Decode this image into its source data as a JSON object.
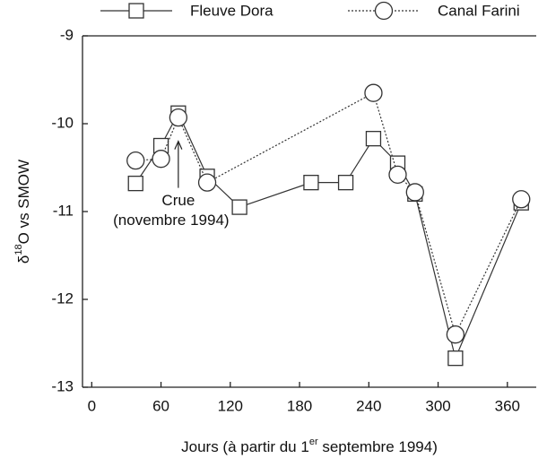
{
  "chart_data": {
    "type": "line",
    "xlabel": [
      "Jours (à partir du 1",
      "er",
      " septembre 1994)"
    ],
    "ylabel": [
      "δ",
      "18",
      "O vs SMOW"
    ],
    "xlim": [
      -8,
      385
    ],
    "ylim": [
      -13,
      -9
    ],
    "xticks": [
      0,
      60,
      120,
      180,
      240,
      300,
      360
    ],
    "yticks": [
      -13,
      -12,
      -11,
      -10,
      -9
    ],
    "grid": false,
    "series": [
      {
        "name": "Fleuve Dora",
        "color": "#333333",
        "marker": "square",
        "dash": "solid",
        "x": [
          38,
          60,
          75,
          100,
          128,
          190,
          220,
          244,
          265,
          280,
          315,
          372
        ],
        "values": [
          -10.68,
          -10.25,
          -9.88,
          -10.6,
          -10.95,
          -10.67,
          -10.67,
          -10.17,
          -10.45,
          -10.8,
          -12.67,
          -10.9
        ]
      },
      {
        "name": "Canal Farini",
        "color": "#333333",
        "marker": "circle",
        "dash": "dotted",
        "x": [
          38,
          60,
          75,
          100,
          244,
          265,
          280,
          315,
          372
        ],
        "values": [
          -10.42,
          -10.4,
          -9.93,
          -10.67,
          -9.65,
          -10.58,
          -10.78,
          -12.4,
          -10.86
        ]
      }
    ],
    "annotation": {
      "lines": [
        "Crue",
        "(novembre 1994)"
      ],
      "x": 75,
      "y": -10.2
    }
  }
}
